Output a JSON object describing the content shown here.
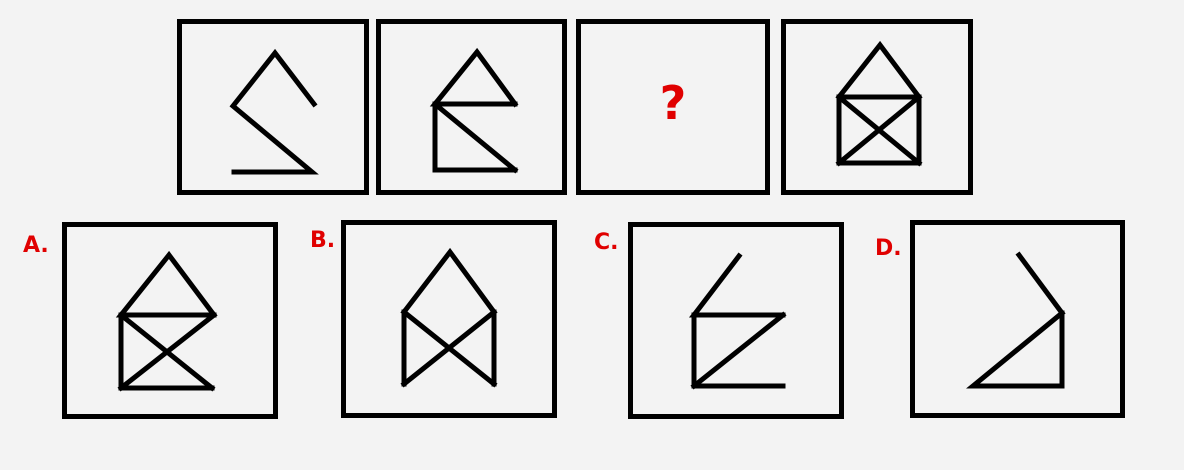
{
  "question_mark": "?",
  "options": {
    "a": "A.",
    "b": "B.",
    "c": "C.",
    "d": "D."
  },
  "colors": {
    "background": "#f3f3f3",
    "line": "#000000",
    "accent": "#e00000"
  }
}
